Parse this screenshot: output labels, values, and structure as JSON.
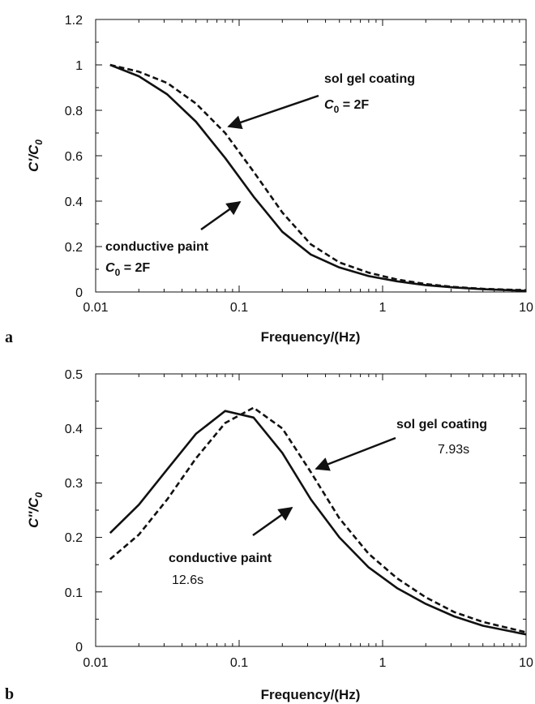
{
  "chart_data": [
    {
      "panel_label": "a",
      "type": "line",
      "xscale": "log",
      "xlim": [
        0.01,
        10
      ],
      "ylim": [
        0,
        1.2
      ],
      "xticks": [
        "0.01",
        "0.1",
        "1",
        "10"
      ],
      "yticks": [
        "0",
        "0.2",
        "0.4",
        "0.6",
        "0.8",
        "1",
        "1.2"
      ],
      "xlabel": "Frequency/(Hz)",
      "ylabel": {
        "main": "C'/C",
        "sub": "0"
      },
      "series": [
        {
          "label_line1": "conductive paint",
          "label_line2": {
            "sym": "C",
            "sub": "0",
            "rest": " = 2F"
          },
          "style": "solid",
          "x": [
            0.0126,
            0.02,
            0.0316,
            0.05,
            0.08,
            0.126,
            0.2,
            0.316,
            0.5,
            0.8,
            1.26,
            2,
            3.16,
            5,
            10
          ],
          "values": [
            1.0,
            0.95,
            0.87,
            0.75,
            0.59,
            0.42,
            0.265,
            0.165,
            0.108,
            0.07,
            0.047,
            0.03,
            0.02,
            0.012,
            0.005
          ]
        },
        {
          "label_line1": "sol gel coating",
          "label_line2": {
            "sym": "C",
            "sub": "0",
            "rest": " = 2F"
          },
          "style": "dashed",
          "x": [
            0.0126,
            0.02,
            0.0316,
            0.05,
            0.08,
            0.126,
            0.2,
            0.316,
            0.5,
            0.8,
            1.26,
            2,
            3.16,
            5,
            10
          ],
          "values": [
            1.0,
            0.97,
            0.92,
            0.83,
            0.7,
            0.53,
            0.35,
            0.21,
            0.13,
            0.085,
            0.055,
            0.035,
            0.022,
            0.014,
            0.008
          ]
        }
      ]
    },
    {
      "panel_label": "b",
      "type": "line",
      "xscale": "log",
      "xlim": [
        0.01,
        10
      ],
      "ylim": [
        0,
        0.5
      ],
      "xticks": [
        "0.01",
        "0.1",
        "1",
        "10"
      ],
      "yticks": [
        "0",
        "0.1",
        "0.2",
        "0.3",
        "0.4",
        "0.5"
      ],
      "xlabel": "Frequency/(Hz)",
      "ylabel": {
        "main": "C''/C",
        "sub": "0"
      },
      "series": [
        {
          "label_line1": "conductive paint",
          "label_line2": {
            "rest": "12.6s"
          },
          "style": "solid",
          "x": [
            0.0126,
            0.02,
            0.0316,
            0.05,
            0.08,
            0.126,
            0.2,
            0.316,
            0.5,
            0.8,
            1.26,
            2,
            3.16,
            5,
            10
          ],
          "values": [
            0.208,
            0.26,
            0.325,
            0.39,
            0.432,
            0.42,
            0.355,
            0.27,
            0.2,
            0.145,
            0.107,
            0.078,
            0.055,
            0.038,
            0.022
          ]
        },
        {
          "label_line1": "sol gel coating",
          "label_line2": {
            "rest": "7.93s"
          },
          "style": "dashed",
          "x": [
            0.0126,
            0.02,
            0.0316,
            0.05,
            0.08,
            0.126,
            0.2,
            0.316,
            0.5,
            0.8,
            1.26,
            2,
            3.16,
            5,
            10
          ],
          "values": [
            0.16,
            0.205,
            0.27,
            0.345,
            0.41,
            0.438,
            0.4,
            0.32,
            0.235,
            0.17,
            0.125,
            0.09,
            0.063,
            0.045,
            0.026
          ]
        }
      ]
    }
  ]
}
